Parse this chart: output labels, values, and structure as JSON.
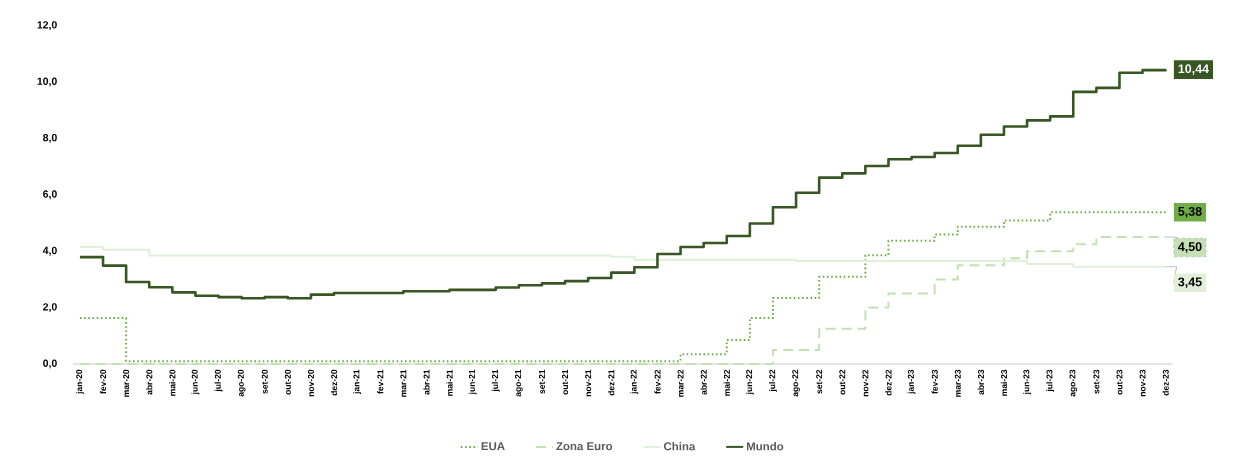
{
  "chart_data": {
    "type": "step",
    "categories": [
      "jan-20",
      "fev-20",
      "mar-20",
      "abr-20",
      "mai-20",
      "jun-20",
      "jul-20",
      "ago-20",
      "set-20",
      "out-20",
      "nov-20",
      "dez-20",
      "jan-21",
      "fev-21",
      "mar-21",
      "abr-21",
      "mai-21",
      "jun-21",
      "jul-21",
      "ago-21",
      "set-21",
      "out-21",
      "nov-21",
      "dez-21",
      "jan-22",
      "fev-22",
      "mar-22",
      "abr-22",
      "mai-22",
      "jun-22",
      "jul-22",
      "ago-22",
      "set-22",
      "out-22",
      "nov-22",
      "dez-22",
      "jan-23",
      "fev-23",
      "mar-23",
      "abr-23",
      "mai-23",
      "jun-23",
      "jul-23",
      "ago-23",
      "set-23",
      "out-23",
      "nov-23",
      "dez-23"
    ],
    "ylim": [
      0,
      12
    ],
    "yticks": [
      {
        "value": 0,
        "label": "0,0"
      },
      {
        "value": 2,
        "label": "2,0"
      },
      {
        "value": 4,
        "label": "4,0"
      },
      {
        "value": 6,
        "label": "6,0"
      },
      {
        "value": 8,
        "label": "8,0"
      },
      {
        "value": 10,
        "label": "10,0"
      },
      {
        "value": 12,
        "label": "12,0"
      }
    ],
    "legend": "bottom",
    "marker": "none",
    "series": [
      {
        "name": "EUA",
        "color": "#70ad47",
        "line_style": "dotted",
        "values": [
          1.63,
          1.63,
          0.1,
          0.1,
          0.1,
          0.1,
          0.1,
          0.1,
          0.1,
          0.1,
          0.1,
          0.1,
          0.1,
          0.1,
          0.1,
          0.1,
          0.1,
          0.1,
          0.1,
          0.1,
          0.1,
          0.1,
          0.1,
          0.1,
          0.1,
          0.1,
          0.35,
          0.35,
          0.85,
          1.63,
          2.34,
          2.34,
          3.09,
          3.09,
          3.86,
          4.37,
          4.37,
          4.59,
          4.87,
          4.87,
          5.09,
          5.09,
          5.38,
          5.38,
          5.38,
          5.38,
          5.38,
          5.38
        ],
        "value_labels": [
          null,
          null,
          null,
          null,
          null,
          null,
          null,
          null,
          null,
          null,
          null,
          null,
          null,
          null,
          null,
          null,
          null,
          null,
          null,
          null,
          null,
          null,
          null,
          null,
          null,
          null,
          null,
          null,
          null,
          null,
          null,
          null,
          null,
          null,
          null,
          null,
          null,
          null,
          null,
          null,
          null,
          null,
          null,
          null,
          null,
          null,
          null,
          "5,38"
        ]
      },
      {
        "name": "Zona Euro",
        "color": "#c5e0b4",
        "line_style": "dashed",
        "values": [
          0,
          0,
          0,
          0,
          0,
          0,
          0,
          0,
          0,
          0,
          0,
          0,
          0,
          0,
          0,
          0,
          0,
          0,
          0,
          0,
          0,
          0,
          0,
          0,
          0,
          0,
          0,
          0,
          0,
          0,
          0.5,
          0.5,
          1.25,
          1.25,
          2.0,
          2.5,
          2.5,
          3.0,
          3.5,
          3.5,
          3.75,
          4.0,
          4.0,
          4.25,
          4.5,
          4.5,
          4.5,
          4.5
        ],
        "value_labels": [
          null,
          null,
          null,
          null,
          null,
          null,
          null,
          null,
          null,
          null,
          null,
          null,
          null,
          null,
          null,
          null,
          null,
          null,
          null,
          null,
          null,
          null,
          null,
          null,
          null,
          null,
          null,
          null,
          null,
          null,
          null,
          null,
          null,
          null,
          null,
          null,
          null,
          null,
          null,
          null,
          null,
          null,
          null,
          null,
          null,
          null,
          null,
          "4,50"
        ]
      },
      {
        "name": "China",
        "color": "#e2f0d9",
        "line_style": "solid",
        "values": [
          4.15,
          4.05,
          4.05,
          3.85,
          3.85,
          3.85,
          3.85,
          3.85,
          3.85,
          3.85,
          3.85,
          3.85,
          3.85,
          3.85,
          3.85,
          3.85,
          3.85,
          3.85,
          3.85,
          3.85,
          3.85,
          3.85,
          3.85,
          3.8,
          3.7,
          3.7,
          3.7,
          3.7,
          3.7,
          3.7,
          3.7,
          3.65,
          3.65,
          3.65,
          3.65,
          3.65,
          3.65,
          3.65,
          3.65,
          3.65,
          3.65,
          3.55,
          3.55,
          3.45,
          3.45,
          3.45,
          3.45,
          3.45
        ],
        "value_labels": [
          null,
          null,
          null,
          null,
          null,
          null,
          null,
          null,
          null,
          null,
          null,
          null,
          null,
          null,
          null,
          null,
          null,
          null,
          null,
          null,
          null,
          null,
          null,
          null,
          null,
          null,
          null,
          null,
          null,
          null,
          null,
          null,
          null,
          null,
          null,
          null,
          null,
          null,
          null,
          null,
          null,
          null,
          null,
          null,
          null,
          null,
          null,
          "3,45"
        ]
      },
      {
        "name": "Mundo",
        "color": "#375623",
        "line_style": "solid",
        "values": [
          3.79,
          3.49,
          2.91,
          2.72,
          2.54,
          2.42,
          2.37,
          2.33,
          2.37,
          2.33,
          2.46,
          2.52,
          2.52,
          2.52,
          2.58,
          2.58,
          2.63,
          2.63,
          2.71,
          2.79,
          2.86,
          2.94,
          3.05,
          3.24,
          3.43,
          3.9,
          4.15,
          4.29,
          4.54,
          4.98,
          5.56,
          6.07,
          6.61,
          6.76,
          7.02,
          7.26,
          7.34,
          7.48,
          7.74,
          8.13,
          8.42,
          8.64,
          8.78,
          9.65,
          9.79,
          10.33,
          10.42,
          10.44
        ],
        "value_labels": [
          null,
          null,
          null,
          null,
          null,
          null,
          null,
          null,
          null,
          null,
          null,
          null,
          null,
          null,
          null,
          null,
          null,
          null,
          null,
          null,
          null,
          null,
          null,
          null,
          null,
          null,
          null,
          null,
          null,
          null,
          null,
          null,
          null,
          null,
          null,
          null,
          null,
          null,
          null,
          null,
          null,
          null,
          null,
          null,
          null,
          null,
          null,
          "10,44"
        ]
      }
    ]
  }
}
